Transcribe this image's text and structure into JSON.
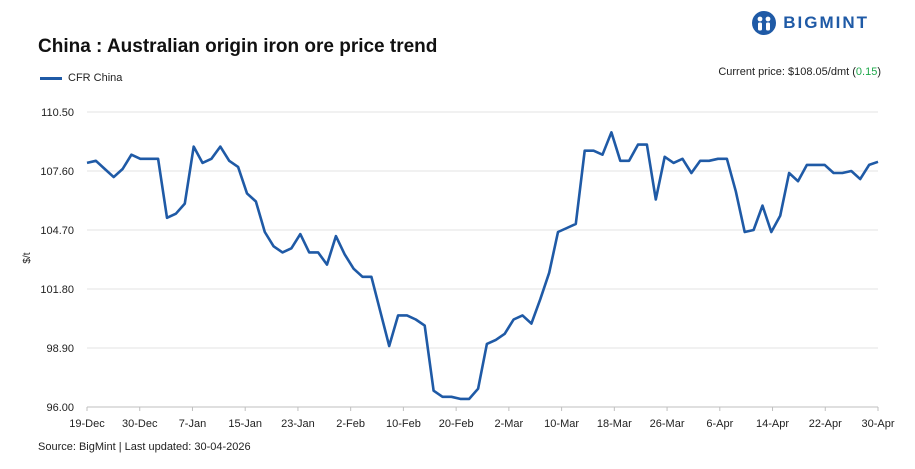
{
  "brand": {
    "name": "BIGMINT",
    "logo_icon": "bigmint-logo-icon",
    "color": "#1f5aa6"
  },
  "header": {
    "title": "China : Australian origin iron ore price trend",
    "current_price_label": "Current price: $108.05/dmt (",
    "current_price_change": "0.15",
    "current_price_close": ")",
    "change_color": "#1ea84a"
  },
  "footer": {
    "source": "Source: BigMint | Last updated: 30-04-2026"
  },
  "chart_data": {
    "type": "line",
    "title": "China : Australian origin iron ore price trend",
    "xlabel": "",
    "ylabel": "$/t",
    "ylim": [
      96.0,
      110.5
    ],
    "yticks": [
      "96.00",
      "98.90",
      "101.80",
      "104.70",
      "107.60",
      "110.50"
    ],
    "xticks": [
      "19-Dec",
      "30-Dec",
      "7-Jan",
      "15-Jan",
      "23-Jan",
      "2-Feb",
      "10-Feb",
      "20-Feb",
      "2-Mar",
      "10-Mar",
      "18-Mar",
      "26-Mar",
      "6-Apr",
      "14-Apr",
      "22-Apr",
      "30-Apr"
    ],
    "grid": true,
    "legend_position": "top-left",
    "series": [
      {
        "name": "CFR China",
        "color": "#1f5aa6",
        "values": [
          108.0,
          108.1,
          107.7,
          107.3,
          107.7,
          108.4,
          108.2,
          108.2,
          108.2,
          105.3,
          105.5,
          106.0,
          108.8,
          108.0,
          108.2,
          108.8,
          108.1,
          107.8,
          106.5,
          106.1,
          104.6,
          103.9,
          103.6,
          103.8,
          104.5,
          103.6,
          103.6,
          103.0,
          104.4,
          103.5,
          102.8,
          102.4,
          102.4,
          100.7,
          99.0,
          100.5,
          100.5,
          100.3,
          100.0,
          96.8,
          96.5,
          96.5,
          96.4,
          96.4,
          96.9,
          99.1,
          99.3,
          99.6,
          100.3,
          100.5,
          100.1,
          101.3,
          102.6,
          104.6,
          104.8,
          105.0,
          108.6,
          108.6,
          108.4,
          109.5,
          108.1,
          108.1,
          108.9,
          108.9,
          106.2,
          108.3,
          108.0,
          108.2,
          107.5,
          108.1,
          108.1,
          108.2,
          108.2,
          106.6,
          104.6,
          104.7,
          105.9,
          104.6,
          105.4,
          107.5,
          107.1,
          107.9,
          107.9,
          107.9,
          107.5,
          107.5,
          107.6,
          107.2,
          107.9,
          108.05
        ]
      }
    ]
  }
}
